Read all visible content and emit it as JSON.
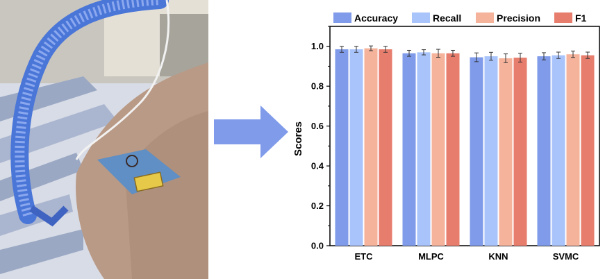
{
  "colors": {
    "accuracy": "#7f9bea",
    "recall": "#a9c4fb",
    "precision": "#f6b39c",
    "f1": "#e77d6c",
    "arrow": "#7f9bea"
  },
  "photo": {
    "icons": [
      "ventilator-tube-icon",
      "wearable-sensor-icon"
    ]
  },
  "chart_data": {
    "type": "bar",
    "title": "",
    "xlabel": "",
    "ylabel": "Scores",
    "ylim": [
      0,
      1.1
    ],
    "yticks": [
      "0.0",
      "0.2",
      "0.4",
      "0.6",
      "0.8",
      "1.0"
    ],
    "categories": [
      "ETC",
      "MLPC",
      "KNN",
      "SVMC"
    ],
    "legend_position": "top",
    "series": [
      {
        "name": "Accuracy",
        "color": "#7f9bea",
        "values": [
          0.985,
          0.965,
          0.945,
          0.95
        ],
        "errors": [
          0.015,
          0.015,
          0.022,
          0.018
        ]
      },
      {
        "name": "Recall",
        "color": "#a9c4fb",
        "values": [
          0.985,
          0.97,
          0.95,
          0.955
        ],
        "errors": [
          0.015,
          0.013,
          0.02,
          0.016
        ]
      },
      {
        "name": "Precision",
        "color": "#f6b39c",
        "values": [
          0.99,
          0.965,
          0.94,
          0.96
        ],
        "errors": [
          0.012,
          0.02,
          0.022,
          0.016
        ]
      },
      {
        "name": "F1",
        "color": "#e77d6c",
        "values": [
          0.985,
          0.965,
          0.943,
          0.955
        ],
        "errors": [
          0.015,
          0.015,
          0.022,
          0.016
        ]
      }
    ]
  }
}
